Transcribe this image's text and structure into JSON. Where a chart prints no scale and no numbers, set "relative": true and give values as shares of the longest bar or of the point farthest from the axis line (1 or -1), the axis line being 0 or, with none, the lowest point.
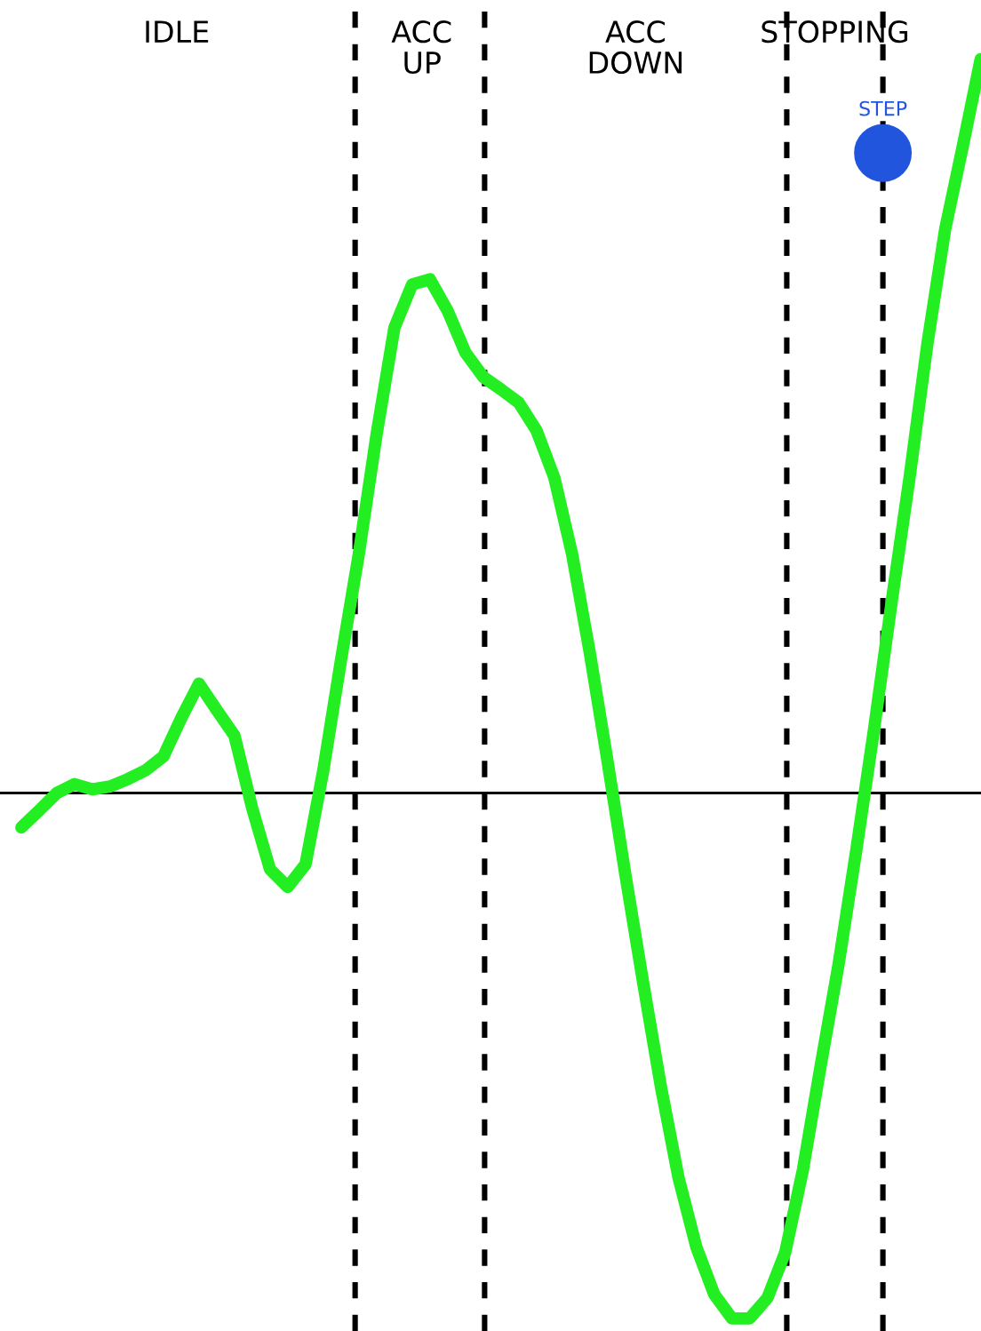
{
  "chart_data": {
    "type": "line",
    "relative": true,
    "categories": [
      null,
      null,
      null,
      null,
      null,
      null,
      null,
      null,
      null,
      null,
      null,
      null,
      null,
      null,
      null,
      null,
      null,
      null,
      null,
      null,
      null,
      null,
      null,
      null,
      null,
      null,
      null,
      null,
      null,
      null,
      null,
      null,
      null,
      null,
      null,
      null,
      null,
      null,
      null,
      null,
      null,
      null,
      null,
      null,
      null,
      null,
      null,
      null,
      null,
      null,
      null,
      null,
      null,
      null,
      null
    ],
    "series": [
      {
        "color": "#22ee22",
        "values": [
          -0.047,
          -0.024,
          0,
          0.012,
          0.005,
          0.009,
          0.019,
          0.031,
          0.05,
          0.102,
          0.149,
          0.113,
          0.078,
          -0.021,
          -0.104,
          -0.128,
          -0.097,
          0.031,
          0.182,
          0.326,
          0.489,
          0.634,
          0.693,
          0.7,
          0.657,
          0.6,
          0.567,
          0.55,
          0.532,
          0.494,
          0.43,
          0.326,
          0.191,
          0.043,
          -0.111,
          -0.258,
          -0.4,
          -0.525,
          -0.619,
          -0.683,
          -0.716,
          -0.716,
          -0.688,
          -0.626,
          -0.513,
          -0.371,
          -0.234,
          -0.078,
          0.087,
          0.262,
          0.43,
          0.612,
          0.768,
          0.882,
          1
        ]
      }
    ],
    "annotations": [
      "IDLE",
      "ACC\nUP",
      "ACC\nDOWN",
      "STOPPING",
      "STEP"
    ],
    "grid": "x",
    "marker": "none",
    "line_style": "solid"
  }
}
